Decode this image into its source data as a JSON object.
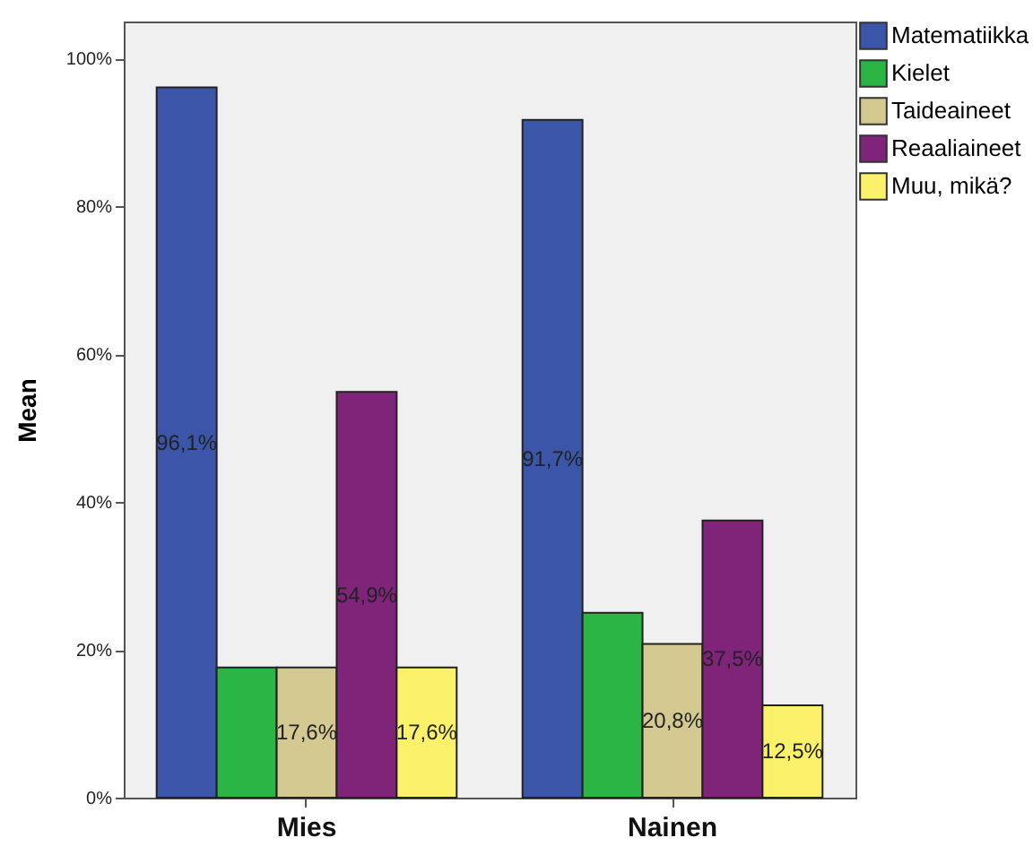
{
  "chart_data": {
    "type": "bar",
    "ylabel": "Mean",
    "categories": [
      "Mies",
      "Nainen"
    ],
    "series": [
      {
        "name": "Matematiikka",
        "color": "#3b55a8",
        "values": [
          96.1,
          91.7
        ],
        "value_labels": [
          "96,1%",
          "91,7%"
        ]
      },
      {
        "name": "Kielet",
        "color": "#2ab544",
        "values": [
          17.6,
          25.0
        ],
        "value_labels": [
          null,
          null
        ]
      },
      {
        "name": "Taideaineet",
        "color": "#d4c991",
        "values": [
          17.6,
          20.8
        ],
        "value_labels": [
          "17,6%",
          "20,8%"
        ]
      },
      {
        "name": "Reaaliaineet",
        "color": "#7f2479",
        "values": [
          54.9,
          37.5
        ],
        "value_labels": [
          "54,9%",
          "37,5%"
        ]
      },
      {
        "name": "Muu, mikä?",
        "color": "#fbf16a",
        "values": [
          17.6,
          12.5
        ],
        "value_labels": [
          "17,6%",
          "12,5%"
        ]
      }
    ],
    "ylim": [
      0,
      105
    ],
    "yticks": [
      {
        "value": 0,
        "label": "0%"
      },
      {
        "value": 20,
        "label": "20%"
      },
      {
        "value": 40,
        "label": "40%"
      },
      {
        "value": 60,
        "label": "60%"
      },
      {
        "value": 80,
        "label": "80%"
      },
      {
        "value": 100,
        "label": "100%"
      }
    ],
    "legend": "top right"
  }
}
